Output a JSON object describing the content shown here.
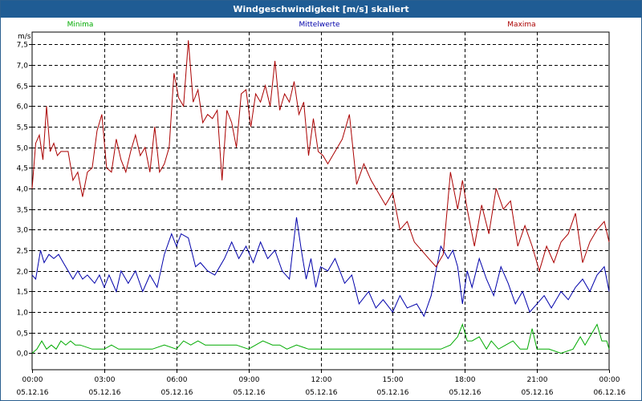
{
  "window": {
    "title": "Windgeschwindigkeit [m/s] skaliert"
  },
  "chart_data": {
    "type": "line",
    "title": "Windgeschwindigkeit [m/s] skaliert",
    "ylabel": "m/s",
    "xlabel": "",
    "ylim": [
      -0.4,
      7.8
    ],
    "xlim": [
      0,
      24
    ],
    "grid": true,
    "legend_placement": "top",
    "y_ticks": [
      "0,0",
      "0,5",
      "1,0",
      "1,5",
      "2,0",
      "2,5",
      "3,0",
      "3,5",
      "4,0",
      "4,5",
      "5,0",
      "5,5",
      "6,0",
      "6,5",
      "7,0",
      "7,5"
    ],
    "y_tick_values": [
      0,
      0.5,
      1,
      1.5,
      2,
      2.5,
      3,
      3.5,
      4,
      4.5,
      5,
      5.5,
      6,
      6.5,
      7,
      7.5
    ],
    "x_ticks": [
      {
        "time": "00:00",
        "date": "05.12.16",
        "hour": 0
      },
      {
        "time": "03:00",
        "date": "05.12.16",
        "hour": 3
      },
      {
        "time": "06:00",
        "date": "05.12.16",
        "hour": 6
      },
      {
        "time": "09:00",
        "date": "05.12.16",
        "hour": 9
      },
      {
        "time": "12:00",
        "date": "05.12.16",
        "hour": 12
      },
      {
        "time": "15:00",
        "date": "05.12.16",
        "hour": 15
      },
      {
        "time": "18:00",
        "date": "05.12.16",
        "hour": 18
      },
      {
        "time": "21:00",
        "date": "05.12.16",
        "hour": 21
      },
      {
        "time": "00:00",
        "date": "06.12.16",
        "hour": 24
      }
    ],
    "series": [
      {
        "name": "Minima",
        "color": "#00aa00",
        "x": [
          0,
          0.2,
          0.4,
          0.6,
          0.8,
          1.0,
          1.2,
          1.4,
          1.6,
          1.8,
          2.0,
          2.5,
          3.0,
          3.3,
          3.6,
          4.0,
          5.0,
          5.5,
          6.0,
          6.3,
          6.6,
          6.9,
          7.2,
          7.5,
          8.0,
          8.5,
          9.0,
          9.3,
          9.6,
          10.0,
          10.3,
          10.6,
          11.0,
          11.5,
          12.0,
          12.5,
          13.0,
          14.0,
          15.0,
          16.0,
          17.0,
          17.4,
          17.7,
          17.9,
          18.1,
          18.3,
          18.6,
          18.9,
          19.1,
          19.4,
          19.7,
          20.0,
          20.3,
          20.6,
          20.8,
          21.0,
          21.2,
          21.5,
          22.0,
          22.5,
          22.8,
          23.0,
          23.2,
          23.5,
          23.7,
          23.9,
          24.0
        ],
        "values": [
          0.0,
          0.1,
          0.3,
          0.1,
          0.2,
          0.1,
          0.3,
          0.2,
          0.3,
          0.2,
          0.2,
          0.1,
          0.1,
          0.2,
          0.1,
          0.1,
          0.1,
          0.2,
          0.1,
          0.3,
          0.2,
          0.3,
          0.2,
          0.2,
          0.2,
          0.2,
          0.1,
          0.2,
          0.3,
          0.2,
          0.2,
          0.1,
          0.2,
          0.1,
          0.1,
          0.1,
          0.1,
          0.1,
          0.1,
          0.1,
          0.1,
          0.2,
          0.4,
          0.7,
          0.3,
          0.3,
          0.4,
          0.1,
          0.3,
          0.1,
          0.2,
          0.3,
          0.1,
          0.1,
          0.6,
          0.1,
          0.1,
          0.1,
          0.0,
          0.1,
          0.4,
          0.2,
          0.4,
          0.7,
          0.3,
          0.3,
          0.1
        ]
      },
      {
        "name": "Mittelwerte",
        "color": "#0000aa",
        "x": [
          0,
          0.15,
          0.35,
          0.5,
          0.7,
          0.9,
          1.1,
          1.3,
          1.5,
          1.7,
          1.9,
          2.1,
          2.3,
          2.6,
          2.8,
          3.0,
          3.2,
          3.5,
          3.7,
          4.0,
          4.3,
          4.6,
          4.9,
          5.2,
          5.5,
          5.8,
          6.0,
          6.2,
          6.5,
          6.8,
          7.0,
          7.3,
          7.6,
          8.0,
          8.3,
          8.6,
          8.9,
          9.2,
          9.5,
          9.8,
          10.1,
          10.4,
          10.7,
          11.0,
          11.2,
          11.4,
          11.6,
          11.8,
          12.0,
          12.3,
          12.6,
          13.0,
          13.3,
          13.6,
          14.0,
          14.3,
          14.6,
          15.0,
          15.3,
          15.6,
          16.0,
          16.3,
          16.6,
          17.0,
          17.3,
          17.5,
          17.7,
          17.9,
          18.1,
          18.3,
          18.6,
          18.9,
          19.2,
          19.5,
          19.8,
          20.1,
          20.4,
          20.7,
          21.0,
          21.3,
          21.6,
          22.0,
          22.3,
          22.6,
          22.9,
          23.2,
          23.5,
          23.8,
          24.0
        ],
        "values": [
          1.9,
          1.8,
          2.5,
          2.2,
          2.4,
          2.3,
          2.4,
          2.2,
          2.0,
          1.8,
          2.0,
          1.8,
          1.9,
          1.7,
          1.9,
          1.6,
          1.9,
          1.5,
          2.0,
          1.7,
          2.0,
          1.5,
          1.9,
          1.6,
          2.4,
          2.9,
          2.6,
          2.9,
          2.8,
          2.1,
          2.2,
          2.0,
          1.9,
          2.3,
          2.7,
          2.3,
          2.6,
          2.2,
          2.7,
          2.3,
          2.5,
          2.0,
          1.8,
          3.3,
          2.5,
          1.8,
          2.3,
          1.6,
          2.1,
          2.0,
          2.3,
          1.7,
          1.9,
          1.2,
          1.5,
          1.1,
          1.3,
          1.0,
          1.4,
          1.1,
          1.2,
          0.9,
          1.4,
          2.6,
          2.3,
          2.5,
          2.1,
          1.2,
          2.0,
          1.6,
          2.3,
          1.8,
          1.4,
          2.1,
          1.7,
          1.2,
          1.5,
          1.0,
          1.2,
          1.4,
          1.1,
          1.5,
          1.3,
          1.6,
          1.8,
          1.5,
          1.9,
          2.1,
          1.5
        ]
      },
      {
        "name": "Maxima",
        "color": "#aa0000",
        "x": [
          0,
          0.15,
          0.3,
          0.45,
          0.6,
          0.75,
          0.9,
          1.05,
          1.2,
          1.35,
          1.5,
          1.7,
          1.9,
          2.1,
          2.3,
          2.5,
          2.7,
          2.9,
          3.1,
          3.3,
          3.5,
          3.7,
          3.9,
          4.1,
          4.3,
          4.5,
          4.7,
          4.9,
          5.1,
          5.3,
          5.5,
          5.7,
          5.9,
          6.1,
          6.3,
          6.5,
          6.7,
          6.9,
          7.1,
          7.3,
          7.5,
          7.7,
          7.9,
          8.1,
          8.3,
          8.5,
          8.7,
          8.9,
          9.1,
          9.3,
          9.5,
          9.7,
          9.9,
          10.1,
          10.3,
          10.5,
          10.7,
          10.9,
          11.1,
          11.3,
          11.5,
          11.7,
          11.9,
          12.1,
          12.3,
          12.6,
          12.9,
          13.2,
          13.5,
          13.8,
          14.1,
          14.4,
          14.7,
          15.0,
          15.3,
          15.6,
          15.9,
          16.2,
          16.5,
          16.8,
          17.1,
          17.4,
          17.7,
          17.9,
          18.1,
          18.4,
          18.7,
          19.0,
          19.3,
          19.6,
          19.9,
          20.2,
          20.5,
          20.8,
          21.1,
          21.4,
          21.7,
          22.0,
          22.3,
          22.6,
          22.9,
          23.2,
          23.5,
          23.8,
          24.0
        ],
        "values": [
          4.0,
          5.1,
          5.3,
          4.7,
          6.0,
          4.9,
          5.1,
          4.8,
          4.9,
          4.9,
          4.9,
          4.2,
          4.4,
          3.8,
          4.4,
          4.5,
          5.4,
          5.8,
          4.5,
          4.4,
          5.2,
          4.7,
          4.4,
          4.9,
          5.3,
          4.8,
          5.0,
          4.4,
          5.5,
          4.4,
          4.6,
          5.0,
          6.8,
          6.2,
          6.0,
          7.6,
          6.1,
          6.4,
          5.6,
          5.8,
          5.7,
          5.9,
          4.2,
          5.9,
          5.6,
          5.0,
          6.3,
          6.4,
          5.5,
          6.3,
          6.1,
          6.5,
          6.0,
          7.1,
          5.9,
          6.3,
          6.1,
          6.6,
          5.8,
          6.1,
          4.8,
          5.7,
          4.9,
          4.8,
          4.6,
          4.9,
          5.2,
          5.8,
          4.1,
          4.6,
          4.2,
          3.9,
          3.6,
          3.9,
          3.0,
          3.2,
          2.7,
          2.5,
          2.3,
          2.1,
          2.4,
          4.4,
          3.5,
          4.2,
          3.5,
          2.6,
          3.6,
          2.9,
          4.0,
          3.5,
          3.7,
          2.6,
          3.1,
          2.6,
          2.0,
          2.6,
          2.2,
          2.7,
          2.9,
          3.4,
          2.2,
          2.7,
          3.0,
          3.2,
          2.7
        ]
      }
    ]
  }
}
